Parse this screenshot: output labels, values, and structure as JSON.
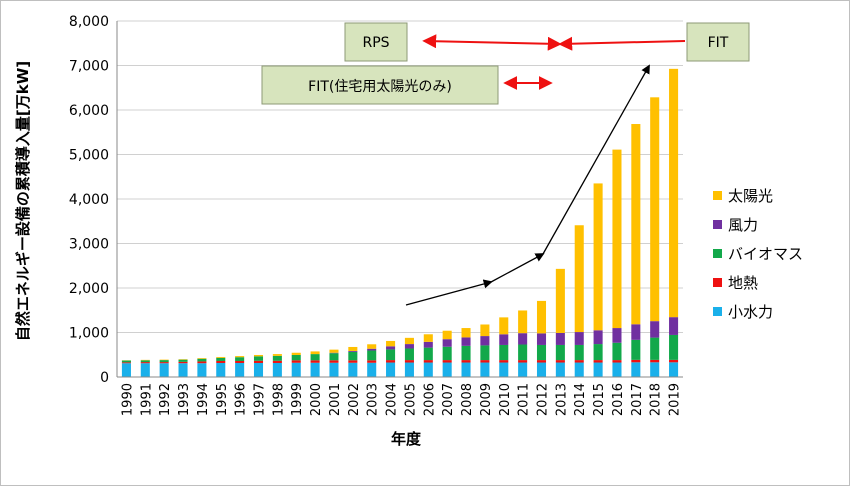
{
  "chart_data": {
    "type": "bar",
    "stacked": true,
    "xlabel": "年度",
    "ylabel": "自然エネルギー設備の累積導入量[万kW]",
    "ylim": [
      0,
      8000
    ],
    "yticks": [
      "0",
      "1,000",
      "2,000",
      "3,000",
      "4,000",
      "5,000",
      "6,000",
      "7,000",
      "8,000"
    ],
    "grid": "horizontal",
    "legend_position": "right",
    "categories": [
      "1990",
      "1991",
      "1992",
      "1993",
      "1994",
      "1995",
      "1996",
      "1997",
      "1998",
      "1999",
      "2000",
      "2001",
      "2002",
      "2003",
      "2004",
      "2005",
      "2006",
      "2007",
      "2008",
      "2009",
      "2010",
      "2011",
      "2012",
      "2013",
      "2014",
      "2015",
      "2016",
      "2017",
      "2018",
      "2019"
    ],
    "series": [
      {
        "name": "小水力",
        "color": "#1ab0ea",
        "values": [
          310,
          310,
          310,
          310,
          310,
          315,
          315,
          315,
          315,
          320,
          320,
          320,
          320,
          320,
          325,
          325,
          325,
          325,
          325,
          325,
          325,
          325,
          325,
          325,
          325,
          325,
          325,
          330,
          330,
          330
        ]
      },
      {
        "name": "地熱",
        "color": "#ee1111",
        "values": [
          20,
          25,
          25,
          30,
          40,
          45,
          45,
          50,
          50,
          55,
          55,
          55,
          55,
          55,
          55,
          55,
          55,
          55,
          55,
          55,
          55,
          55,
          55,
          55,
          55,
          55,
          55,
          55,
          55,
          55
        ]
      },
      {
        "name": "バイオマス",
        "color": "#12a84a",
        "values": [
          40,
          40,
          45,
          50,
          60,
          70,
          85,
          100,
          110,
          120,
          140,
          160,
          190,
          220,
          240,
          260,
          280,
          300,
          320,
          330,
          340,
          350,
          340,
          340,
          340,
          360,
          390,
          450,
          500,
          560
        ]
      },
      {
        "name": "風力",
        "color": "#7030a0",
        "values": [
          0,
          0,
          0,
          0,
          0,
          0,
          0,
          0,
          0,
          0,
          0,
          10,
          20,
          40,
          70,
          100,
          130,
          170,
          190,
          210,
          240,
          255,
          260,
          270,
          290,
          310,
          330,
          350,
          370,
          400
        ]
      },
      {
        "name": "太陽光",
        "color": "#ffc000",
        "values": [
          5,
          10,
          10,
          10,
          15,
          20,
          25,
          30,
          40,
          50,
          60,
          70,
          90,
          100,
          120,
          140,
          170,
          190,
          210,
          260,
          380,
          510,
          730,
          1440,
          2400,
          3300,
          4010,
          4500,
          5030,
          5580
        ]
      }
    ],
    "annotations": {
      "rps": "RPS",
      "fit": "FIT",
      "fit_residential": "FIT(住宅用太陽光のみ)"
    }
  }
}
